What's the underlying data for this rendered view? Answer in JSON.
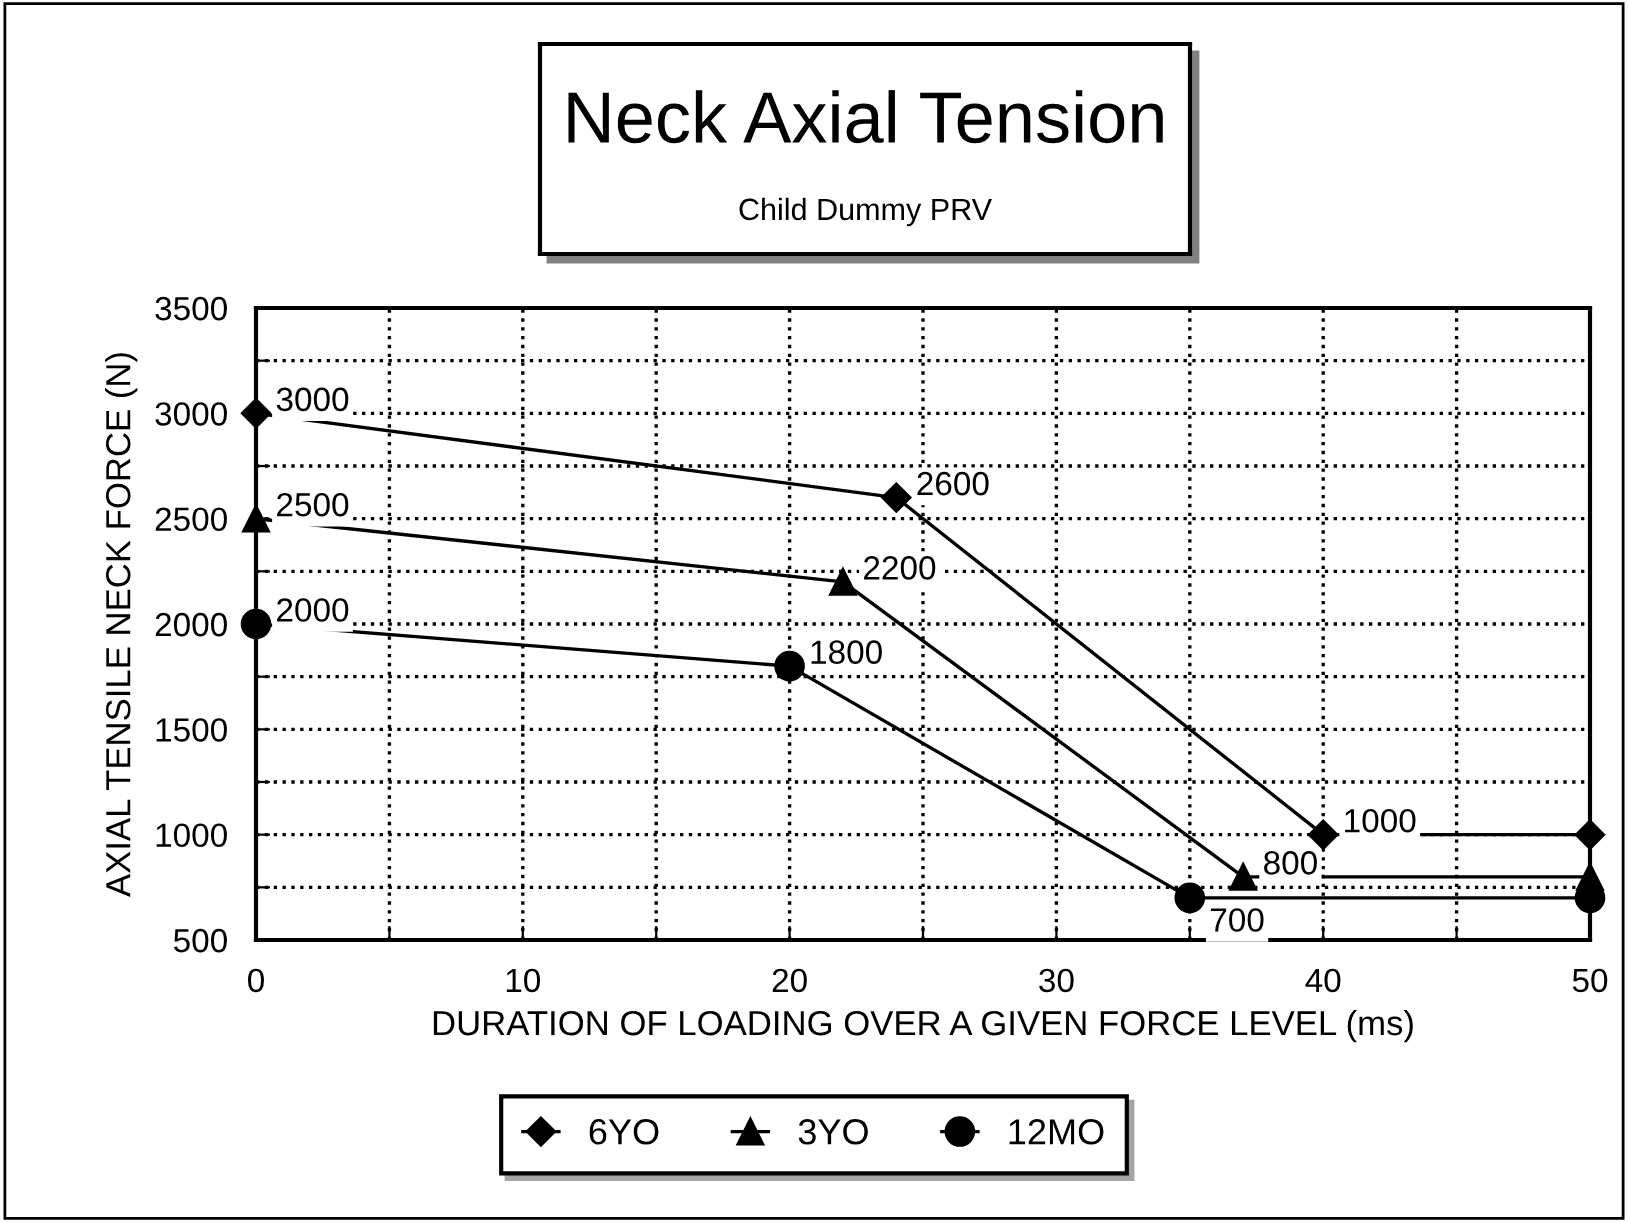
{
  "chart_data": {
    "type": "line",
    "title": "Neck Axial Tension",
    "subtitle": "Child Dummy PRV",
    "xlabel": "DURATION OF LOADING OVER A GIVEN FORCE LEVEL (ms)",
    "ylabel": "AXIAL TENSILE NECK FORCE (N)",
    "series": [
      {
        "name": "6YO",
        "color": "#000000",
        "marker": "diamond",
        "x": [
          0,
          24,
          40,
          50
        ],
        "values": [
          3000,
          2600,
          1000,
          1000
        ],
        "value_labels": [
          "3000",
          "2600",
          "1000",
          null
        ]
      },
      {
        "name": "3YO",
        "color": "#000000",
        "marker": "triangle",
        "x": [
          0,
          22,
          37,
          50
        ],
        "values": [
          2500,
          2200,
          800,
          800
        ],
        "value_labels": [
          "2500",
          "2200",
          "800",
          null
        ]
      },
      {
        "name": "12MO",
        "color": "#000000",
        "marker": "circle",
        "x": [
          0,
          20,
          35,
          50
        ],
        "values": [
          2000,
          1800,
          700,
          700
        ],
        "value_labels": [
          "2000",
          "1800",
          "700",
          null
        ]
      }
    ],
    "xlim": [
      0,
      50
    ],
    "ylim": [
      500,
      3500
    ],
    "xticks": [
      0,
      {
        "value": 5,
        "label": null
      },
      10,
      {
        "value": 15,
        "label": null
      },
      20,
      {
        "value": 25,
        "label": null
      },
      30,
      {
        "value": 35,
        "label": null
      },
      40,
      {
        "value": 45,
        "label": null
      },
      50
    ],
    "yticks": [
      500,
      {
        "value": 750,
        "label": null
      },
      1000,
      {
        "value": 1250,
        "label": null
      },
      1500,
      {
        "value": 1750,
        "label": null
      },
      2000,
      {
        "value": 2250,
        "label": null
      },
      2500,
      {
        "value": 2750,
        "label": null
      },
      3000,
      {
        "value": 3250,
        "label": null
      },
      3500
    ],
    "grid": true,
    "legend": "bottom",
    "line_style": "solid"
  }
}
